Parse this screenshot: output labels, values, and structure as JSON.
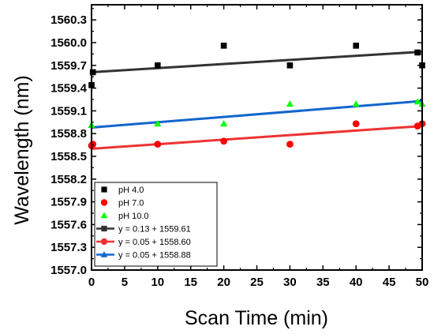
{
  "chart_data": {
    "type": "scatter",
    "xlabel": "Scan Time (min)",
    "ylabel": "Wavelength (nm)",
    "xlim": [
      0,
      50
    ],
    "ylim": [
      1557.0,
      1560.5
    ],
    "xticks": [
      "0",
      "5",
      "10",
      "15",
      "20",
      "25",
      "30",
      "35",
      "40",
      "45",
      "50"
    ],
    "yticks": [
      "1557.0",
      "1557.3",
      "1557.6",
      "1557.9",
      "1558.2",
      "1558.5",
      "1558.8",
      "1559.1",
      "1559.4",
      "1559.7",
      "1560.0",
      "1560.3"
    ],
    "grid": false,
    "legend_position": "bottom-left",
    "series": [
      {
        "name": "pH 4.0",
        "kind": "scatter",
        "marker": "square",
        "color": "#000000",
        "points": [
          [
            0,
            1559.44
          ],
          [
            0.2,
            1559.61
          ],
          [
            10,
            1559.7
          ],
          [
            20,
            1559.96
          ],
          [
            30,
            1559.7
          ],
          [
            40,
            1559.96
          ],
          [
            49.3,
            1559.87
          ],
          [
            50,
            1559.7
          ]
        ]
      },
      {
        "name": "pH 7.0",
        "kind": "scatter",
        "marker": "circle",
        "color": "#ff0000",
        "points": [
          [
            0,
            1558.64
          ],
          [
            0.2,
            1558.66
          ],
          [
            10,
            1558.66
          ],
          [
            20,
            1558.7
          ],
          [
            30,
            1558.66
          ],
          [
            40,
            1558.93
          ],
          [
            49.3,
            1558.9
          ],
          [
            50,
            1558.93
          ]
        ]
      },
      {
        "name": "pH 10.0",
        "kind": "scatter",
        "marker": "triangle",
        "color": "#00ff00",
        "points": [
          [
            0,
            1558.91
          ],
          [
            10,
            1558.93
          ],
          [
            20,
            1558.93
          ],
          [
            30,
            1559.19
          ],
          [
            40,
            1559.19
          ],
          [
            49.3,
            1559.22
          ],
          [
            50,
            1559.19
          ]
        ]
      },
      {
        "name": "y = 0.13 + 1559.61",
        "kind": "fit",
        "marker": "square",
        "color": "#333333",
        "x": [
          0,
          50
        ],
        "y": [
          1559.61,
          1559.88
        ]
      },
      {
        "name": "y = 0.05 + 1558.60",
        "kind": "fit",
        "marker": "circle",
        "color": "#ee3333",
        "x": [
          0,
          50
        ],
        "y": [
          1558.6,
          1558.9
        ]
      },
      {
        "name": "y = 0.05 + 1558.88",
        "kind": "fit",
        "marker": "triangle",
        "color": "#1166cc",
        "x": [
          0,
          50
        ],
        "y": [
          1558.88,
          1559.23
        ]
      }
    ]
  }
}
